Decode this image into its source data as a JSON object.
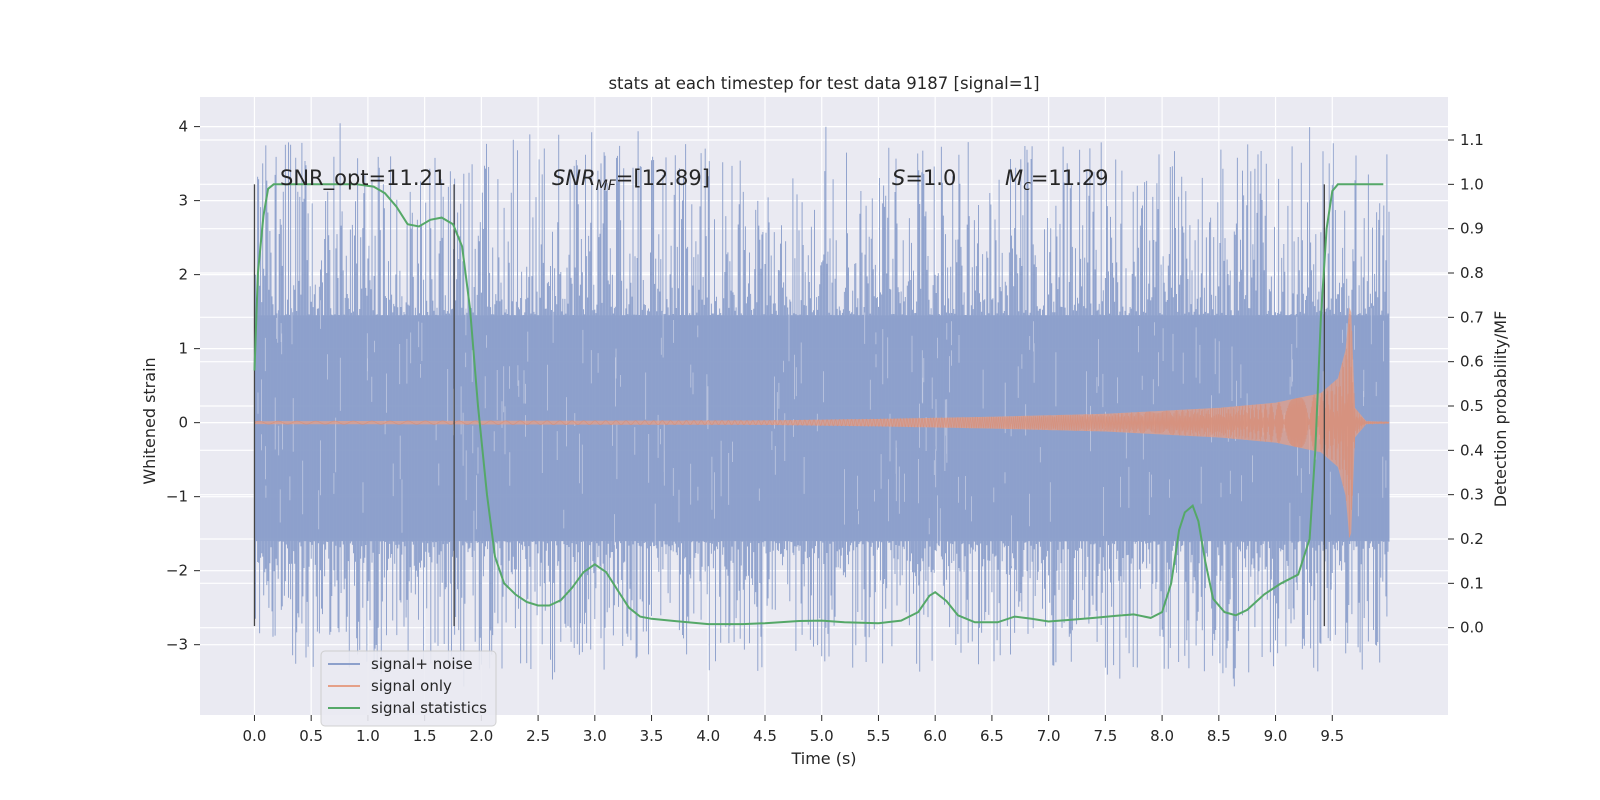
{
  "chart_data": {
    "type": "line",
    "title": "stats at each timestep for test data 9187 [signal=1]",
    "xlabel": "Time (s)",
    "ylabel": "Whitened strain",
    "y2label": "Detection probability/MF",
    "xlim": [
      -0.48,
      10.52
    ],
    "ylim": [
      -3.95,
      4.4
    ],
    "y2lim": [
      -0.197,
      1.197
    ],
    "xticks": [
      "0.0",
      "0.5",
      "1.0",
      "1.5",
      "2.0",
      "2.5",
      "3.0",
      "3.5",
      "4.0",
      "4.5",
      "5.0",
      "5.5",
      "6.0",
      "6.5",
      "7.0",
      "7.5",
      "8.0",
      "8.5",
      "9.0",
      "9.5"
    ],
    "yticks": [
      "−3",
      "−2",
      "−1",
      "0",
      "1",
      "2",
      "3",
      "4"
    ],
    "y2ticks": [
      "0.0",
      "0.1",
      "0.2",
      "0.3",
      "0.4",
      "0.5",
      "0.6",
      "0.7",
      "0.8",
      "0.9",
      "1.0",
      "1.1"
    ],
    "grid": true,
    "legend_position": "lower-left",
    "series": [
      {
        "name": "signal+ noise",
        "color": "#8da0cb",
        "description": "dense whitened strain trace, 0.0–10.0 s",
        "core_range": [
          -1.6,
          1.45
        ],
        "peak_range": [
          -3.6,
          4.05
        ]
      },
      {
        "name": "signal only",
        "color": "#e5a088",
        "description": "chirp waveform growing in amplitude, merger near 9.65 s",
        "envelope": {
          "t": [
            0,
            4.5,
            5.5,
            6.5,
            7.5,
            8.5,
            9.0,
            9.4,
            9.55,
            9.62,
            9.66,
            9.7,
            9.8,
            10.0
          ],
          "amp": [
            0.02,
            0.03,
            0.05,
            0.08,
            0.12,
            0.2,
            0.27,
            0.4,
            0.6,
            1.0,
            1.75,
            0.2,
            0.02,
            0.01
          ]
        }
      },
      {
        "name": "signal statistics",
        "color": "#55a868",
        "axis": "right",
        "x": [
          0.0,
          0.03,
          0.08,
          0.12,
          0.17,
          0.25,
          0.4,
          0.6,
          0.9,
          1.05,
          1.15,
          1.25,
          1.35,
          1.45,
          1.55,
          1.65,
          1.75,
          1.83,
          1.9,
          1.97,
          2.05,
          2.12,
          2.2,
          2.3,
          2.4,
          2.5,
          2.6,
          2.7,
          2.8,
          2.9,
          3.0,
          3.1,
          3.2,
          3.3,
          3.4,
          3.5,
          3.7,
          4.0,
          4.3,
          4.5,
          4.8,
          5.0,
          5.2,
          5.5,
          5.7,
          5.85,
          5.95,
          6.0,
          6.1,
          6.2,
          6.35,
          6.55,
          6.7,
          6.85,
          7.0,
          7.2,
          7.4,
          7.6,
          7.75,
          7.9,
          8.0,
          8.08,
          8.15,
          8.2,
          8.27,
          8.32,
          8.38,
          8.45,
          8.55,
          8.65,
          8.75,
          8.9,
          9.05,
          9.2,
          9.3,
          9.35,
          9.4,
          9.45,
          9.5,
          9.55,
          9.6,
          9.7,
          9.8,
          9.95
        ],
        "values": [
          0.58,
          0.8,
          0.93,
          0.99,
          1.0,
          1.0,
          1.0,
          1.0,
          1.0,
          0.995,
          0.98,
          0.95,
          0.91,
          0.905,
          0.92,
          0.925,
          0.91,
          0.86,
          0.72,
          0.5,
          0.3,
          0.16,
          0.1,
          0.075,
          0.058,
          0.05,
          0.05,
          0.062,
          0.09,
          0.125,
          0.143,
          0.125,
          0.085,
          0.045,
          0.025,
          0.02,
          0.015,
          0.008,
          0.008,
          0.01,
          0.015,
          0.016,
          0.012,
          0.01,
          0.016,
          0.035,
          0.072,
          0.08,
          0.06,
          0.028,
          0.012,
          0.012,
          0.025,
          0.02,
          0.014,
          0.018,
          0.022,
          0.027,
          0.03,
          0.022,
          0.035,
          0.1,
          0.22,
          0.26,
          0.275,
          0.24,
          0.15,
          0.065,
          0.035,
          0.028,
          0.04,
          0.075,
          0.1,
          0.12,
          0.2,
          0.4,
          0.7,
          0.9,
          0.985,
          1.0,
          1.0,
          1.0,
          1.0,
          1.0
        ]
      }
    ],
    "annotations": {
      "snr_opt": "SNR_opt=11.21",
      "snr_mf_main": "SNR",
      "snr_mf_sub": "MF",
      "snr_mf_rest": "=[12.89]",
      "s_main": "S",
      "s_rest": "=1.0",
      "mc_main": "M",
      "mc_sub": "c",
      "mc_rest": "=11.29"
    },
    "vertical_markers": [
      0.0,
      1.76,
      9.43
    ]
  }
}
